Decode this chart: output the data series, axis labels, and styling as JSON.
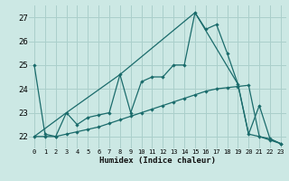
{
  "xlabel": "Humidex (Indice chaleur)",
  "bg_color": "#cce8e4",
  "grid_color": "#aacfcb",
  "line_color": "#1a6b6b",
  "marker_color": "#1a6b6b",
  "xlim": [
    -0.5,
    23.5
  ],
  "ylim": [
    21.5,
    27.5
  ],
  "yticks": [
    22,
    23,
    24,
    25,
    26,
    27
  ],
  "xticks": [
    0,
    1,
    2,
    3,
    4,
    5,
    6,
    7,
    8,
    9,
    10,
    11,
    12,
    13,
    14,
    15,
    16,
    17,
    18,
    19,
    20,
    21,
    22,
    23
  ],
  "series": [
    {
      "x": [
        0,
        1,
        2,
        3,
        4,
        5,
        6,
        7,
        8,
        9,
        10,
        11,
        12,
        13,
        14,
        15,
        16,
        17,
        18,
        19,
        20,
        21,
        22,
        23
      ],
      "y": [
        25.0,
        22.1,
        22.0,
        23.0,
        22.5,
        22.8,
        22.9,
        23.0,
        24.6,
        23.0,
        24.3,
        24.5,
        24.5,
        25.0,
        25.0,
        27.2,
        26.5,
        26.7,
        25.5,
        24.2,
        22.1,
        23.3,
        21.9,
        21.7
      ]
    },
    {
      "x": [
        0,
        1,
        2,
        3,
        4,
        5,
        6,
        7,
        8,
        9,
        10,
        11,
        12,
        13,
        14,
        15,
        16,
        17,
        18,
        19,
        20,
        21,
        22,
        23
      ],
      "y": [
        22.0,
        22.0,
        22.0,
        22.1,
        22.2,
        22.3,
        22.4,
        22.55,
        22.7,
        22.85,
        23.0,
        23.15,
        23.3,
        23.45,
        23.6,
        23.75,
        23.9,
        24.0,
        24.05,
        24.1,
        24.15,
        22.0,
        21.85,
        21.7
      ]
    },
    {
      "x": [
        0,
        3,
        8,
        15,
        19,
        20,
        22,
        23
      ],
      "y": [
        22.0,
        23.0,
        24.6,
        27.2,
        24.2,
        22.1,
        21.9,
        21.7
      ]
    }
  ]
}
